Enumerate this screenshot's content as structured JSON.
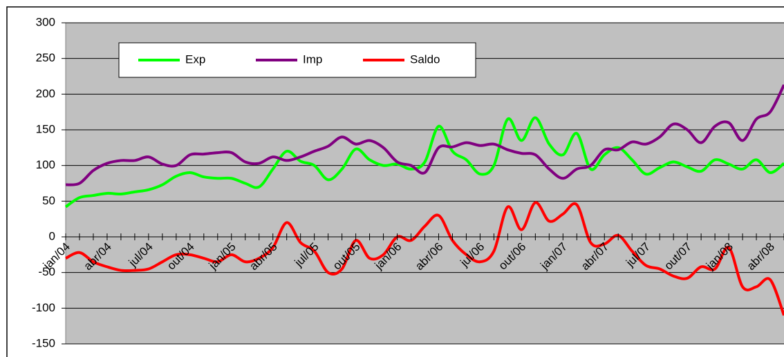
{
  "chart_data": {
    "type": "line",
    "categories": [
      "jan/04",
      null,
      null,
      "abr/04",
      null,
      null,
      "jul/04",
      null,
      null,
      "out/04",
      null,
      null,
      "jan/05",
      null,
      null,
      "abr/05",
      null,
      null,
      "jul/05",
      null,
      null,
      "out/05",
      null,
      null,
      "jan/06",
      null,
      null,
      "abr/06",
      null,
      null,
      "jul/06",
      null,
      null,
      "out/06",
      null,
      null,
      "jan/07",
      null,
      null,
      "abr/07",
      null,
      null,
      "jul/07",
      null,
      null,
      "out/07",
      null,
      null,
      "jan/08",
      null,
      null,
      "abr/08",
      null
    ],
    "series": [
      {
        "name": "Exp",
        "color": "#00ff00",
        "values": [
          42,
          55,
          58,
          61,
          60,
          63,
          66,
          73,
          85,
          90,
          84,
          82,
          82,
          75,
          70,
          95,
          120,
          106,
          100,
          80,
          95,
          123,
          108,
          100,
          102,
          95,
          105,
          155,
          120,
          108,
          88,
          100,
          165,
          135,
          167,
          130,
          115,
          145,
          95,
          115,
          125,
          108,
          88,
          97,
          105,
          98,
          92,
          108,
          102,
          95,
          108,
          90,
          103
        ]
      },
      {
        "name": "Imp",
        "color": "#800080",
        "values": [
          73,
          75,
          93,
          103,
          107,
          107,
          112,
          102,
          100,
          115,
          116,
          118,
          118,
          105,
          103,
          112,
          107,
          112,
          120,
          127,
          140,
          130,
          135,
          125,
          105,
          100,
          90,
          125,
          126,
          132,
          128,
          130,
          122,
          117,
          115,
          95,
          82,
          95,
          100,
          122,
          122,
          133,
          130,
          140,
          158,
          150,
          132,
          155,
          160,
          135,
          165,
          175,
          213
        ]
      },
      {
        "name": "Saldo",
        "color": "#ff0000",
        "values": [
          -30,
          -22,
          -35,
          -42,
          -47,
          -47,
          -45,
          -35,
          -25,
          -25,
          -30,
          -35,
          -25,
          -35,
          -30,
          -15,
          20,
          -8,
          -20,
          -50,
          -45,
          -5,
          -30,
          -25,
          0,
          -5,
          15,
          30,
          -5,
          -25,
          -35,
          -20,
          42,
          10,
          48,
          22,
          32,
          45,
          -8,
          -10,
          2,
          -20,
          -40,
          -45,
          -55,
          -58,
          -42,
          -45,
          -15,
          -70,
          -70,
          -60,
          -110
        ]
      }
    ],
    "ylim": [
      -150,
      300
    ],
    "yticks": [
      -150,
      -100,
      -50,
      0,
      50,
      100,
      150,
      200,
      250,
      300
    ],
    "grid": true
  }
}
